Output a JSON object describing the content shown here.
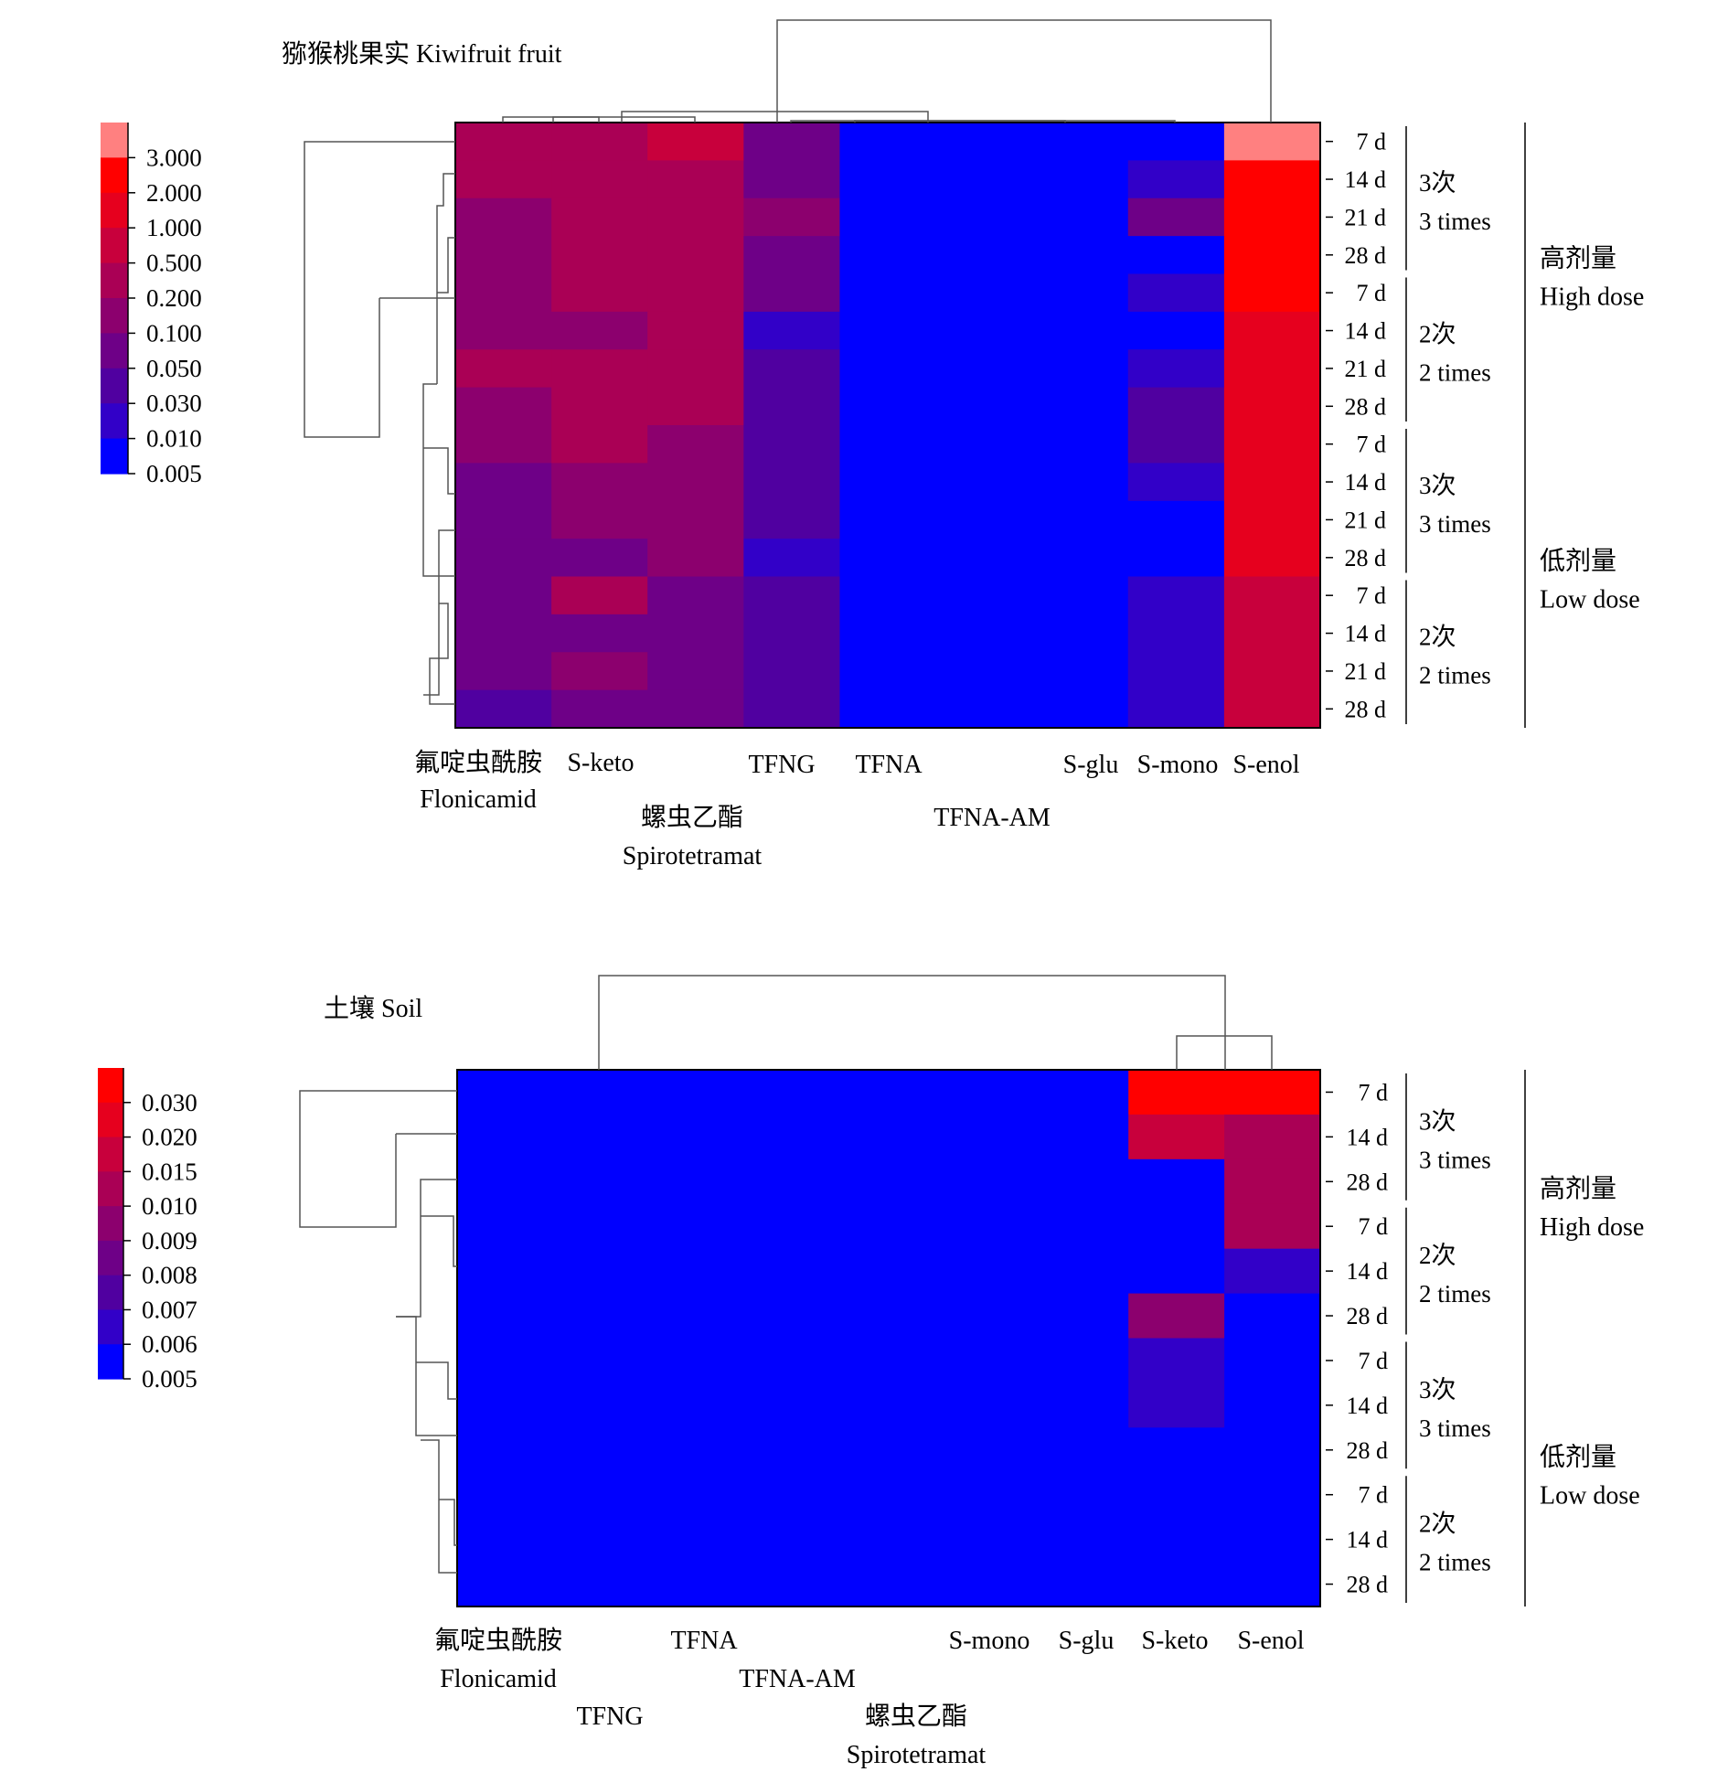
{
  "chart_data": [
    {
      "type": "heatmap",
      "title": "猕猴桃果实 Kiwifruit fruit",
      "legend": {
        "labels": [
          "3.000",
          "2.000",
          "1.000",
          "0.500",
          "0.200",
          "0.100",
          "0.050",
          "0.030",
          "0.010",
          "0.005"
        ],
        "colors": [
          "#ff8080",
          "#ff0000",
          "#e6001e",
          "#c8003c",
          "#aa0055",
          "#8c006e",
          "#6e0087",
          "#5000a0",
          "#3200c8",
          "#0000ff"
        ]
      },
      "columns": [
        "Flonicamid",
        "S-keto",
        "Spirotetramat",
        "TFNG",
        "TFNA",
        "TFNA-AM",
        "S-glu",
        "S-mono",
        "S-enol"
      ],
      "column_labels": [
        {
          "zh": "氟啶虫酰胺",
          "en": "Flonicamid"
        },
        {
          "en": "S-keto"
        },
        {
          "zh": "螺虫乙酯",
          "en": "Spirotetramat"
        },
        {
          "en": "TFNG"
        },
        {
          "en": "TFNA"
        },
        {
          "en": "TFNA-AM"
        },
        {
          "en": "S-glu"
        },
        {
          "en": "S-mono"
        },
        {
          "en": "S-enol"
        }
      ],
      "rows": [
        "7 d",
        "14 d",
        "21 d",
        "28 d",
        "7 d",
        "14 d",
        "21 d",
        "28 d",
        "7 d",
        "14 d",
        "21 d",
        "28 d",
        "7 d",
        "14 d",
        "21 d",
        "28 d"
      ],
      "frequency_groups": [
        {
          "zh": "3次",
          "en": "3 times",
          "rows": 4
        },
        {
          "zh": "2次",
          "en": "2 times",
          "rows": 4
        },
        {
          "zh": "3次",
          "en": "3 times",
          "rows": 4
        },
        {
          "zh": "2次",
          "en": "2 times",
          "rows": 4
        }
      ],
      "dose_groups": [
        {
          "zh": "高剂量",
          "en": "High dose",
          "rows": 8
        },
        {
          "zh": "低剂量",
          "en": "Low dose",
          "rows": 8
        }
      ],
      "values": [
        [
          0.2,
          0.2,
          0.5,
          0.05,
          0.005,
          0.005,
          0.005,
          0.005,
          3.0
        ],
        [
          0.2,
          0.2,
          0.2,
          0.05,
          0.005,
          0.005,
          0.005,
          0.01,
          2.0
        ],
        [
          0.1,
          0.2,
          0.2,
          0.1,
          0.005,
          0.005,
          0.005,
          0.05,
          2.0
        ],
        [
          0.1,
          0.2,
          0.2,
          0.05,
          0.005,
          0.005,
          0.005,
          0.005,
          2.0
        ],
        [
          0.1,
          0.2,
          0.2,
          0.05,
          0.005,
          0.005,
          0.005,
          0.01,
          2.0
        ],
        [
          0.1,
          0.1,
          0.2,
          0.01,
          0.005,
          0.005,
          0.005,
          0.005,
          1.0
        ],
        [
          0.2,
          0.2,
          0.2,
          0.03,
          0.005,
          0.005,
          0.005,
          0.01,
          1.0
        ],
        [
          0.1,
          0.2,
          0.2,
          0.03,
          0.005,
          0.005,
          0.005,
          0.03,
          1.0
        ],
        [
          0.1,
          0.2,
          0.1,
          0.03,
          0.005,
          0.005,
          0.005,
          0.03,
          1.0
        ],
        [
          0.05,
          0.1,
          0.1,
          0.03,
          0.005,
          0.005,
          0.005,
          0.01,
          1.0
        ],
        [
          0.05,
          0.1,
          0.1,
          0.03,
          0.005,
          0.005,
          0.005,
          0.005,
          1.0
        ],
        [
          0.05,
          0.05,
          0.1,
          0.01,
          0.005,
          0.005,
          0.005,
          0.005,
          1.0
        ],
        [
          0.05,
          0.2,
          0.05,
          0.03,
          0.005,
          0.005,
          0.005,
          0.01,
          0.5
        ],
        [
          0.05,
          0.05,
          0.05,
          0.03,
          0.005,
          0.005,
          0.005,
          0.01,
          0.5
        ],
        [
          0.05,
          0.1,
          0.05,
          0.03,
          0.005,
          0.005,
          0.005,
          0.01,
          0.5
        ],
        [
          0.03,
          0.05,
          0.05,
          0.03,
          0.005,
          0.005,
          0.005,
          0.01,
          0.5
        ]
      ]
    },
    {
      "type": "heatmap",
      "title": "土壤 Soil",
      "legend": {
        "labels": [
          "0.030",
          "0.020",
          "0.015",
          "0.010",
          "0.009",
          "0.008",
          "0.007",
          "0.006",
          "0.005"
        ],
        "colors": [
          "#ff0000",
          "#e6001e",
          "#c8003c",
          "#aa0055",
          "#8c006e",
          "#6e0087",
          "#5000a0",
          "#3200c8",
          "#0000ff"
        ]
      },
      "columns": [
        "Flonicamid",
        "TFNG",
        "TFNA",
        "TFNA-AM",
        "Spirotetramat",
        "S-mono",
        "S-glu",
        "S-keto",
        "S-enol"
      ],
      "column_labels": [
        {
          "zh": "氟啶虫酰胺",
          "en": "Flonicamid"
        },
        {
          "en": "TFNG"
        },
        {
          "en": "TFNA"
        },
        {
          "en": "TFNA-AM"
        },
        {
          "zh": "螺虫乙酯",
          "en": "Spirotetramat"
        },
        {
          "en": "S-mono"
        },
        {
          "en": "S-glu"
        },
        {
          "en": "S-keto"
        },
        {
          "en": "S-enol"
        }
      ],
      "rows": [
        "7 d",
        "14 d",
        "28 d",
        "7 d",
        "14 d",
        "28 d",
        "7 d",
        "14 d",
        "28 d",
        "7 d",
        "14 d",
        "28 d"
      ],
      "frequency_groups": [
        {
          "zh": "3次",
          "en": "3 times",
          "rows": 3
        },
        {
          "zh": "2次",
          "en": "2 times",
          "rows": 3
        },
        {
          "zh": "3次",
          "en": "3 times",
          "rows": 3
        },
        {
          "zh": "2次",
          "en": "2 times",
          "rows": 3
        }
      ],
      "dose_groups": [
        {
          "zh": "高剂量",
          "en": "High dose",
          "rows": 6
        },
        {
          "zh": "低剂量",
          "en": "Low dose",
          "rows": 6
        }
      ],
      "values": [
        [
          0.005,
          0.005,
          0.005,
          0.005,
          0.005,
          0.005,
          0.005,
          0.03,
          0.03
        ],
        [
          0.005,
          0.005,
          0.005,
          0.005,
          0.005,
          0.005,
          0.005,
          0.015,
          0.01
        ],
        [
          0.005,
          0.005,
          0.005,
          0.005,
          0.005,
          0.005,
          0.005,
          0.005,
          0.01
        ],
        [
          0.005,
          0.005,
          0.005,
          0.005,
          0.005,
          0.005,
          0.005,
          0.005,
          0.01
        ],
        [
          0.005,
          0.005,
          0.005,
          0.005,
          0.005,
          0.005,
          0.005,
          0.005,
          0.006
        ],
        [
          0.005,
          0.005,
          0.005,
          0.005,
          0.005,
          0.005,
          0.005,
          0.009,
          0.005
        ],
        [
          0.005,
          0.005,
          0.005,
          0.005,
          0.005,
          0.005,
          0.005,
          0.006,
          0.005
        ],
        [
          0.005,
          0.005,
          0.005,
          0.005,
          0.005,
          0.005,
          0.005,
          0.006,
          0.005
        ],
        [
          0.005,
          0.005,
          0.005,
          0.005,
          0.005,
          0.005,
          0.005,
          0.005,
          0.005
        ],
        [
          0.005,
          0.005,
          0.005,
          0.005,
          0.005,
          0.005,
          0.005,
          0.005,
          0.005
        ],
        [
          0.005,
          0.005,
          0.005,
          0.005,
          0.005,
          0.005,
          0.005,
          0.005,
          0.005
        ],
        [
          0.005,
          0.005,
          0.005,
          0.005,
          0.005,
          0.005,
          0.005,
          0.005,
          0.005
        ]
      ]
    }
  ]
}
